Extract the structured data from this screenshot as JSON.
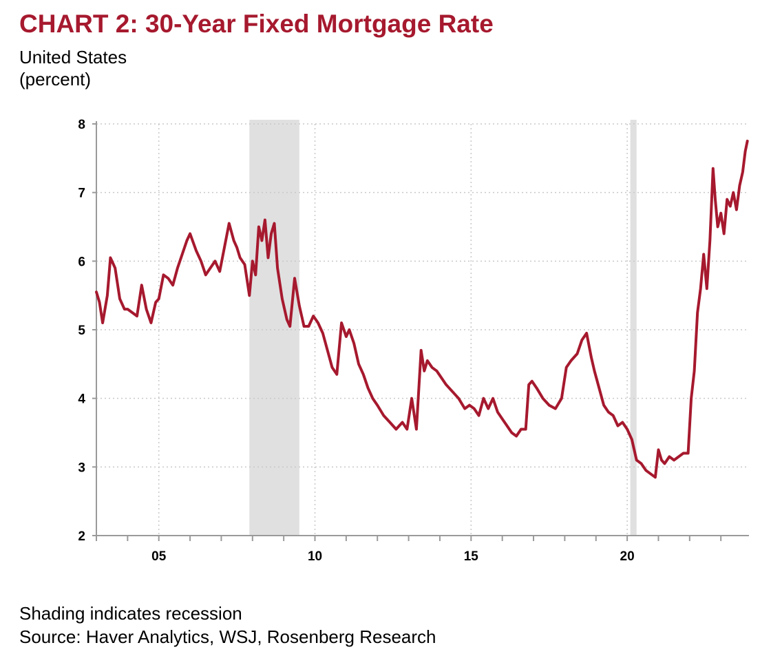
{
  "header": {
    "title": "CHART 2: 30-Year Fixed Mortgage Rate",
    "subtitle_line1": "United States",
    "subtitle_line2": "(percent)"
  },
  "footer": {
    "note": "Shading indicates recession",
    "source": "Source: Haver Analytics, WSJ, Rosenberg Research"
  },
  "colors": {
    "title": "#a6192e",
    "series": "#a6192e",
    "recession": "#e0e0e0",
    "grid": "#c8c8c8",
    "axis": "#9a9a9a"
  },
  "chart_data": {
    "type": "line",
    "title": "CHART 2: 30-Year Fixed Mortgage Rate",
    "xlabel": "",
    "ylabel": "(percent)",
    "xlim": [
      2003.0,
      2023.9
    ],
    "ylim": [
      2,
      8
    ],
    "grid": true,
    "legend": "none",
    "x_ticks": [
      {
        "value": 2005,
        "label": "05"
      },
      {
        "value": 2010,
        "label": "10"
      },
      {
        "value": 2015,
        "label": "15"
      },
      {
        "value": 2020,
        "label": "20"
      }
    ],
    "x_grid": [
      2005,
      2010,
      2015,
      2020
    ],
    "y_ticks": [
      2,
      3,
      4,
      5,
      6,
      7,
      8
    ],
    "recessions": [
      {
        "start": 2007.9,
        "end": 2009.5
      },
      {
        "start": 2020.1,
        "end": 2020.3
      }
    ],
    "series": [
      {
        "x": [
          2003.0,
          2003.1,
          2003.2,
          2003.35,
          2003.45,
          2003.6,
          2003.75,
          2003.9,
          2004.0,
          2004.15,
          2004.3,
          2004.45,
          2004.6,
          2004.75,
          2004.9,
          2005.0,
          2005.15,
          2005.3,
          2005.45,
          2005.6,
          2005.75,
          2005.9,
          2006.0,
          2006.2,
          2006.35,
          2006.5,
          2006.65,
          2006.8,
          2006.95,
          2007.1,
          2007.25,
          2007.4,
          2007.5,
          2007.6,
          2007.75,
          2007.9,
          2008.0,
          2008.1,
          2008.2,
          2008.3,
          2008.4,
          2008.5,
          2008.6,
          2008.7,
          2008.8,
          2008.95,
          2009.1,
          2009.2,
          2009.35,
          2009.5,
          2009.65,
          2009.8,
          2009.95,
          2010.1,
          2010.25,
          2010.4,
          2010.55,
          2010.7,
          2010.85,
          2011.0,
          2011.1,
          2011.25,
          2011.4,
          2011.55,
          2011.7,
          2011.85,
          2012.0,
          2012.2,
          2012.4,
          2012.6,
          2012.8,
          2012.95,
          2013.1,
          2013.25,
          2013.4,
          2013.5,
          2013.6,
          2013.75,
          2013.9,
          2014.05,
          2014.2,
          2014.4,
          2014.6,
          2014.8,
          2014.95,
          2015.1,
          2015.25,
          2015.4,
          2015.55,
          2015.7,
          2015.85,
          2016.0,
          2016.15,
          2016.3,
          2016.45,
          2016.6,
          2016.75,
          2016.85,
          2016.95,
          2017.1,
          2017.3,
          2017.5,
          2017.7,
          2017.9,
          2018.05,
          2018.2,
          2018.4,
          2018.55,
          2018.7,
          2018.85,
          2018.95,
          2019.1,
          2019.25,
          2019.4,
          2019.55,
          2019.7,
          2019.85,
          2020.0,
          2020.15,
          2020.3,
          2020.45,
          2020.6,
          2020.75,
          2020.9,
          2021.0,
          2021.1,
          2021.2,
          2021.35,
          2021.5,
          2021.65,
          2021.8,
          2021.95,
          2022.05,
          2022.15,
          2022.25,
          2022.35,
          2022.45,
          2022.55,
          2022.65,
          2022.75,
          2022.82,
          2022.9,
          2023.0,
          2023.1,
          2023.2,
          2023.3,
          2023.4,
          2023.5,
          2023.6,
          2023.7,
          2023.78,
          2023.85
        ],
        "values": [
          5.55,
          5.4,
          5.1,
          5.5,
          6.05,
          5.9,
          5.45,
          5.3,
          5.3,
          5.25,
          5.2,
          5.65,
          5.3,
          5.1,
          5.4,
          5.45,
          5.8,
          5.75,
          5.65,
          5.9,
          6.1,
          6.3,
          6.4,
          6.15,
          6.0,
          5.8,
          5.9,
          6.0,
          5.85,
          6.2,
          6.55,
          6.3,
          6.2,
          6.05,
          5.95,
          5.5,
          6.0,
          5.8,
          6.5,
          6.3,
          6.6,
          6.05,
          6.4,
          6.55,
          5.9,
          5.45,
          5.15,
          5.05,
          5.75,
          5.35,
          5.05,
          5.05,
          5.2,
          5.1,
          4.95,
          4.7,
          4.45,
          4.35,
          5.1,
          4.9,
          5.0,
          4.8,
          4.5,
          4.35,
          4.15,
          4.0,
          3.9,
          3.75,
          3.65,
          3.55,
          3.65,
          3.55,
          4.0,
          3.55,
          4.7,
          4.4,
          4.55,
          4.45,
          4.4,
          4.3,
          4.2,
          4.1,
          4.0,
          3.85,
          3.9,
          3.85,
          3.75,
          4.0,
          3.85,
          4.0,
          3.8,
          3.7,
          3.6,
          3.5,
          3.45,
          3.55,
          3.55,
          4.2,
          4.25,
          4.15,
          4.0,
          3.9,
          3.85,
          4.0,
          4.45,
          4.55,
          4.65,
          4.85,
          4.95,
          4.6,
          4.4,
          4.15,
          3.9,
          3.8,
          3.75,
          3.6,
          3.65,
          3.55,
          3.4,
          3.1,
          3.05,
          2.95,
          2.9,
          2.85,
          3.25,
          3.1,
          3.05,
          3.15,
          3.1,
          3.15,
          3.2,
          3.2,
          4.0,
          4.4,
          5.25,
          5.6,
          6.1,
          5.6,
          6.3,
          7.35,
          6.9,
          6.5,
          6.7,
          6.4,
          6.9,
          6.8,
          7.0,
          6.75,
          7.1,
          7.3,
          7.6,
          7.75
        ]
      }
    ]
  }
}
